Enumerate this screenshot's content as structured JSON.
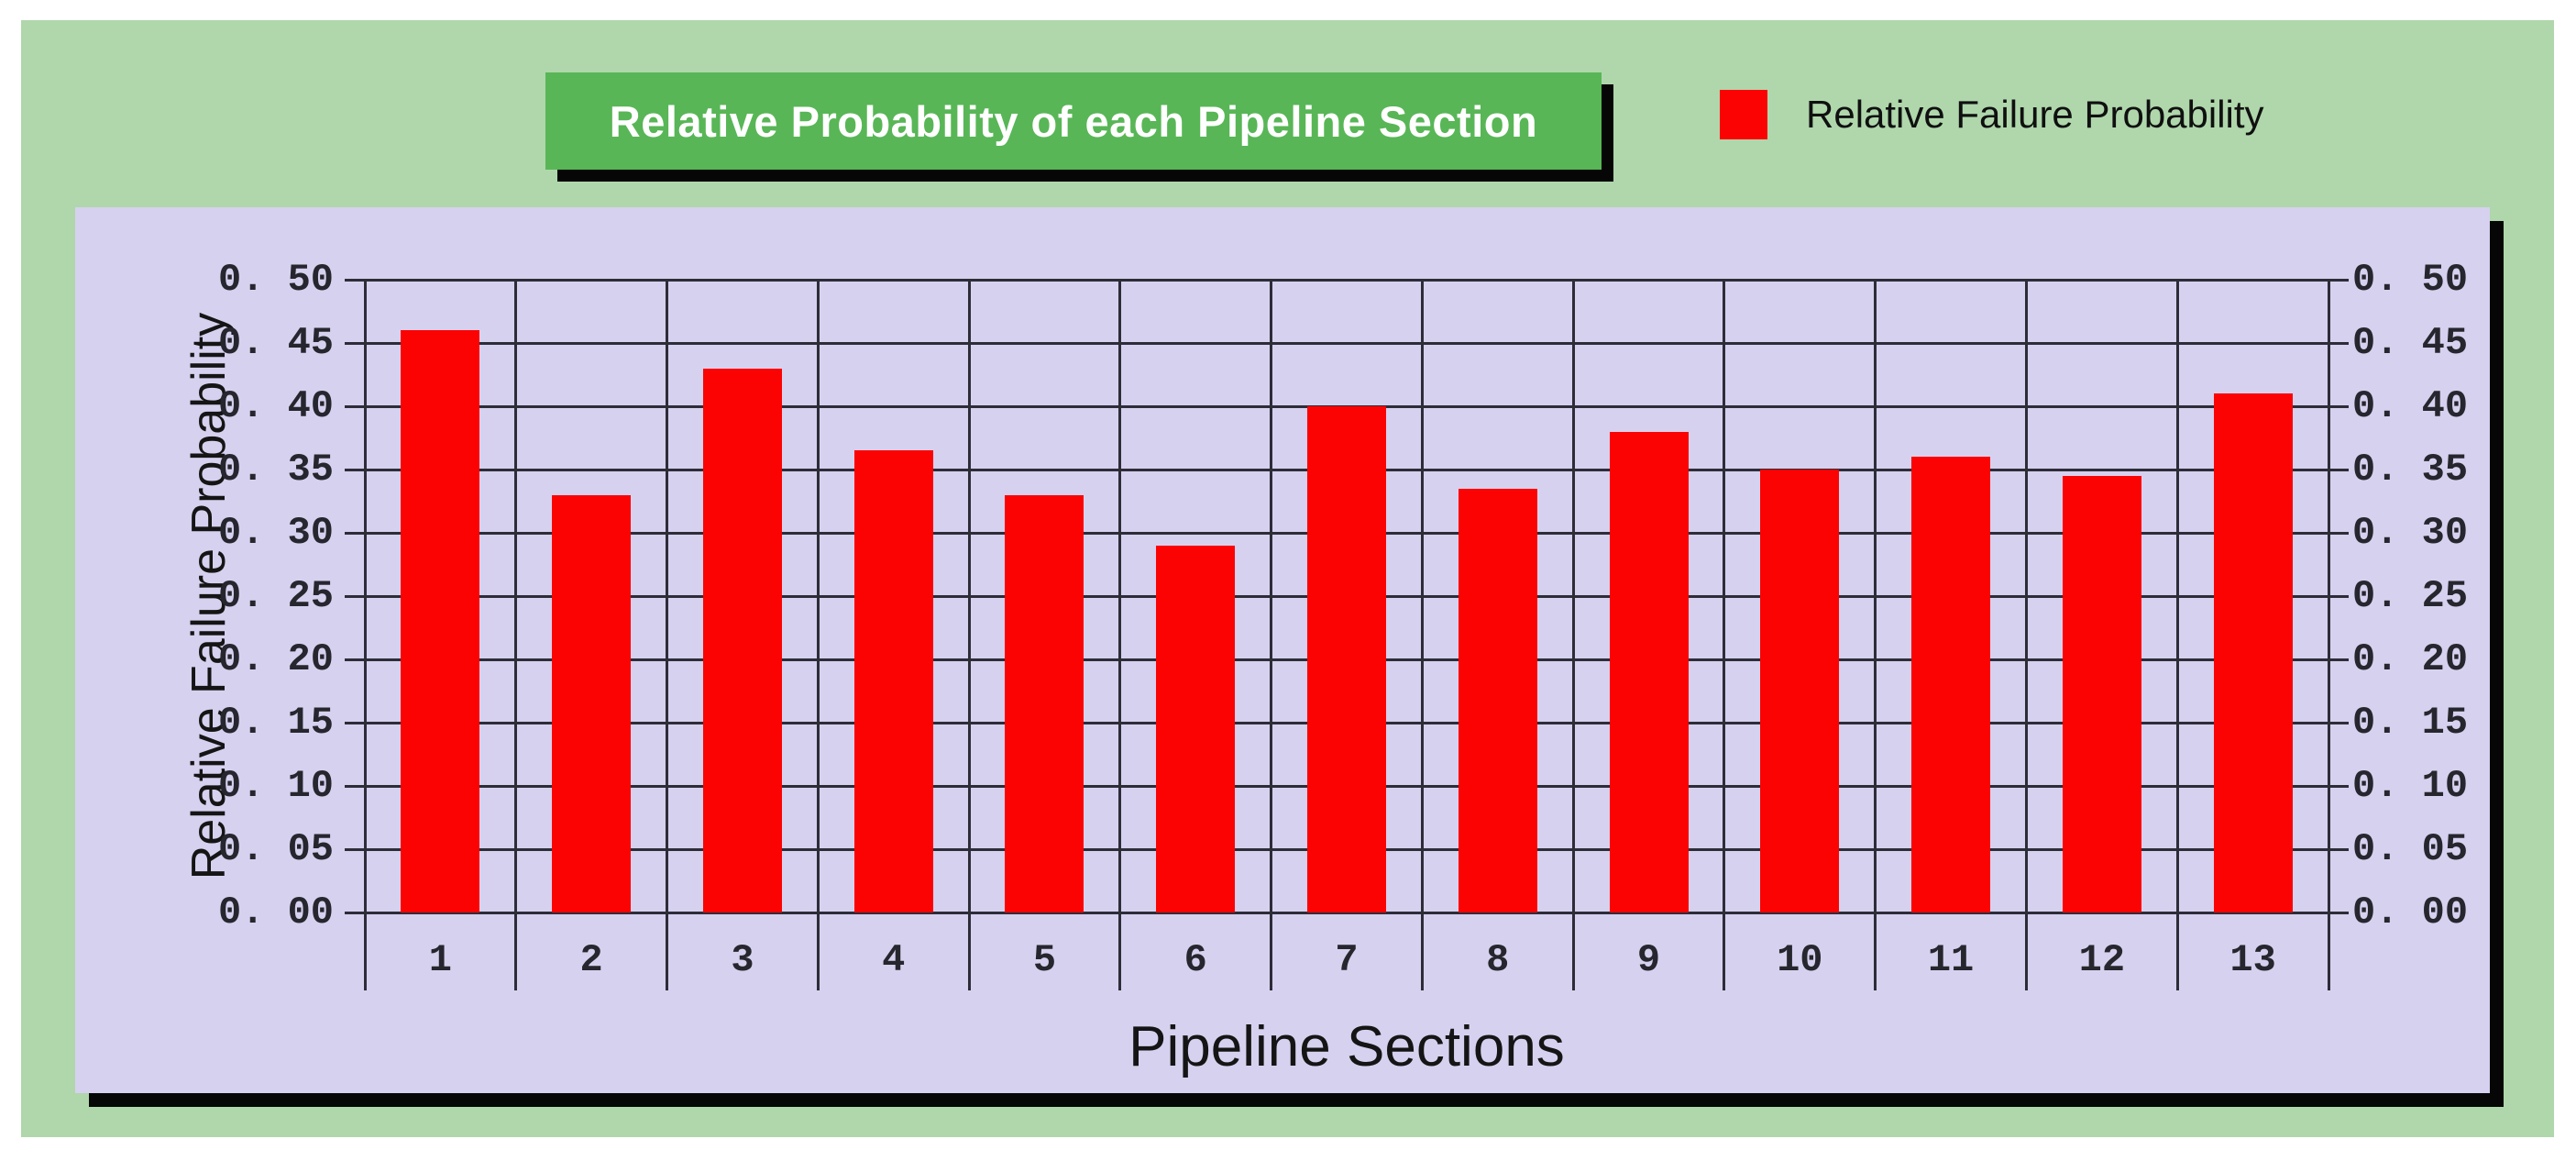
{
  "page": {
    "background": "#ffffff",
    "frame_color": "#afd7ab",
    "panel_color": "#d6d1ef"
  },
  "header": {
    "title": "Relative Probability of each Pipeline Section",
    "title_bg": "#58b656",
    "title_text_color": "#ffffff"
  },
  "legend": {
    "swatch_color": "#fc0303",
    "label": "Relative Failure Probability"
  },
  "chart_data": {
    "type": "bar",
    "title": "Relative Probability of each Pipeline Section",
    "xlabel": "Pipeline Sections",
    "ylabel": "Relative Failure Probability",
    "categories": [
      "1",
      "2",
      "3",
      "4",
      "5",
      "6",
      "7",
      "8",
      "9",
      "10",
      "11",
      "12",
      "13"
    ],
    "series": [
      {
        "name": "Relative Failure Probability",
        "color": "#fc0303",
        "values": [
          0.46,
          0.33,
          0.43,
          0.365,
          0.33,
          0.29,
          0.4,
          0.335,
          0.38,
          0.35,
          0.36,
          0.345,
          0.41
        ]
      }
    ],
    "ylim": [
      0,
      0.5
    ],
    "ytick_step": 0.05,
    "ytick_labels": [
      "0. 00",
      "0. 05",
      "0. 10",
      "0. 15",
      "0. 20",
      "0. 25",
      "0. 30",
      "0. 35",
      "0. 40",
      "0. 45",
      "0. 50"
    ],
    "y_axis_both_sides": true,
    "grid": true,
    "gridline_color": "#2d2d38",
    "legend_position": "top-right"
  }
}
